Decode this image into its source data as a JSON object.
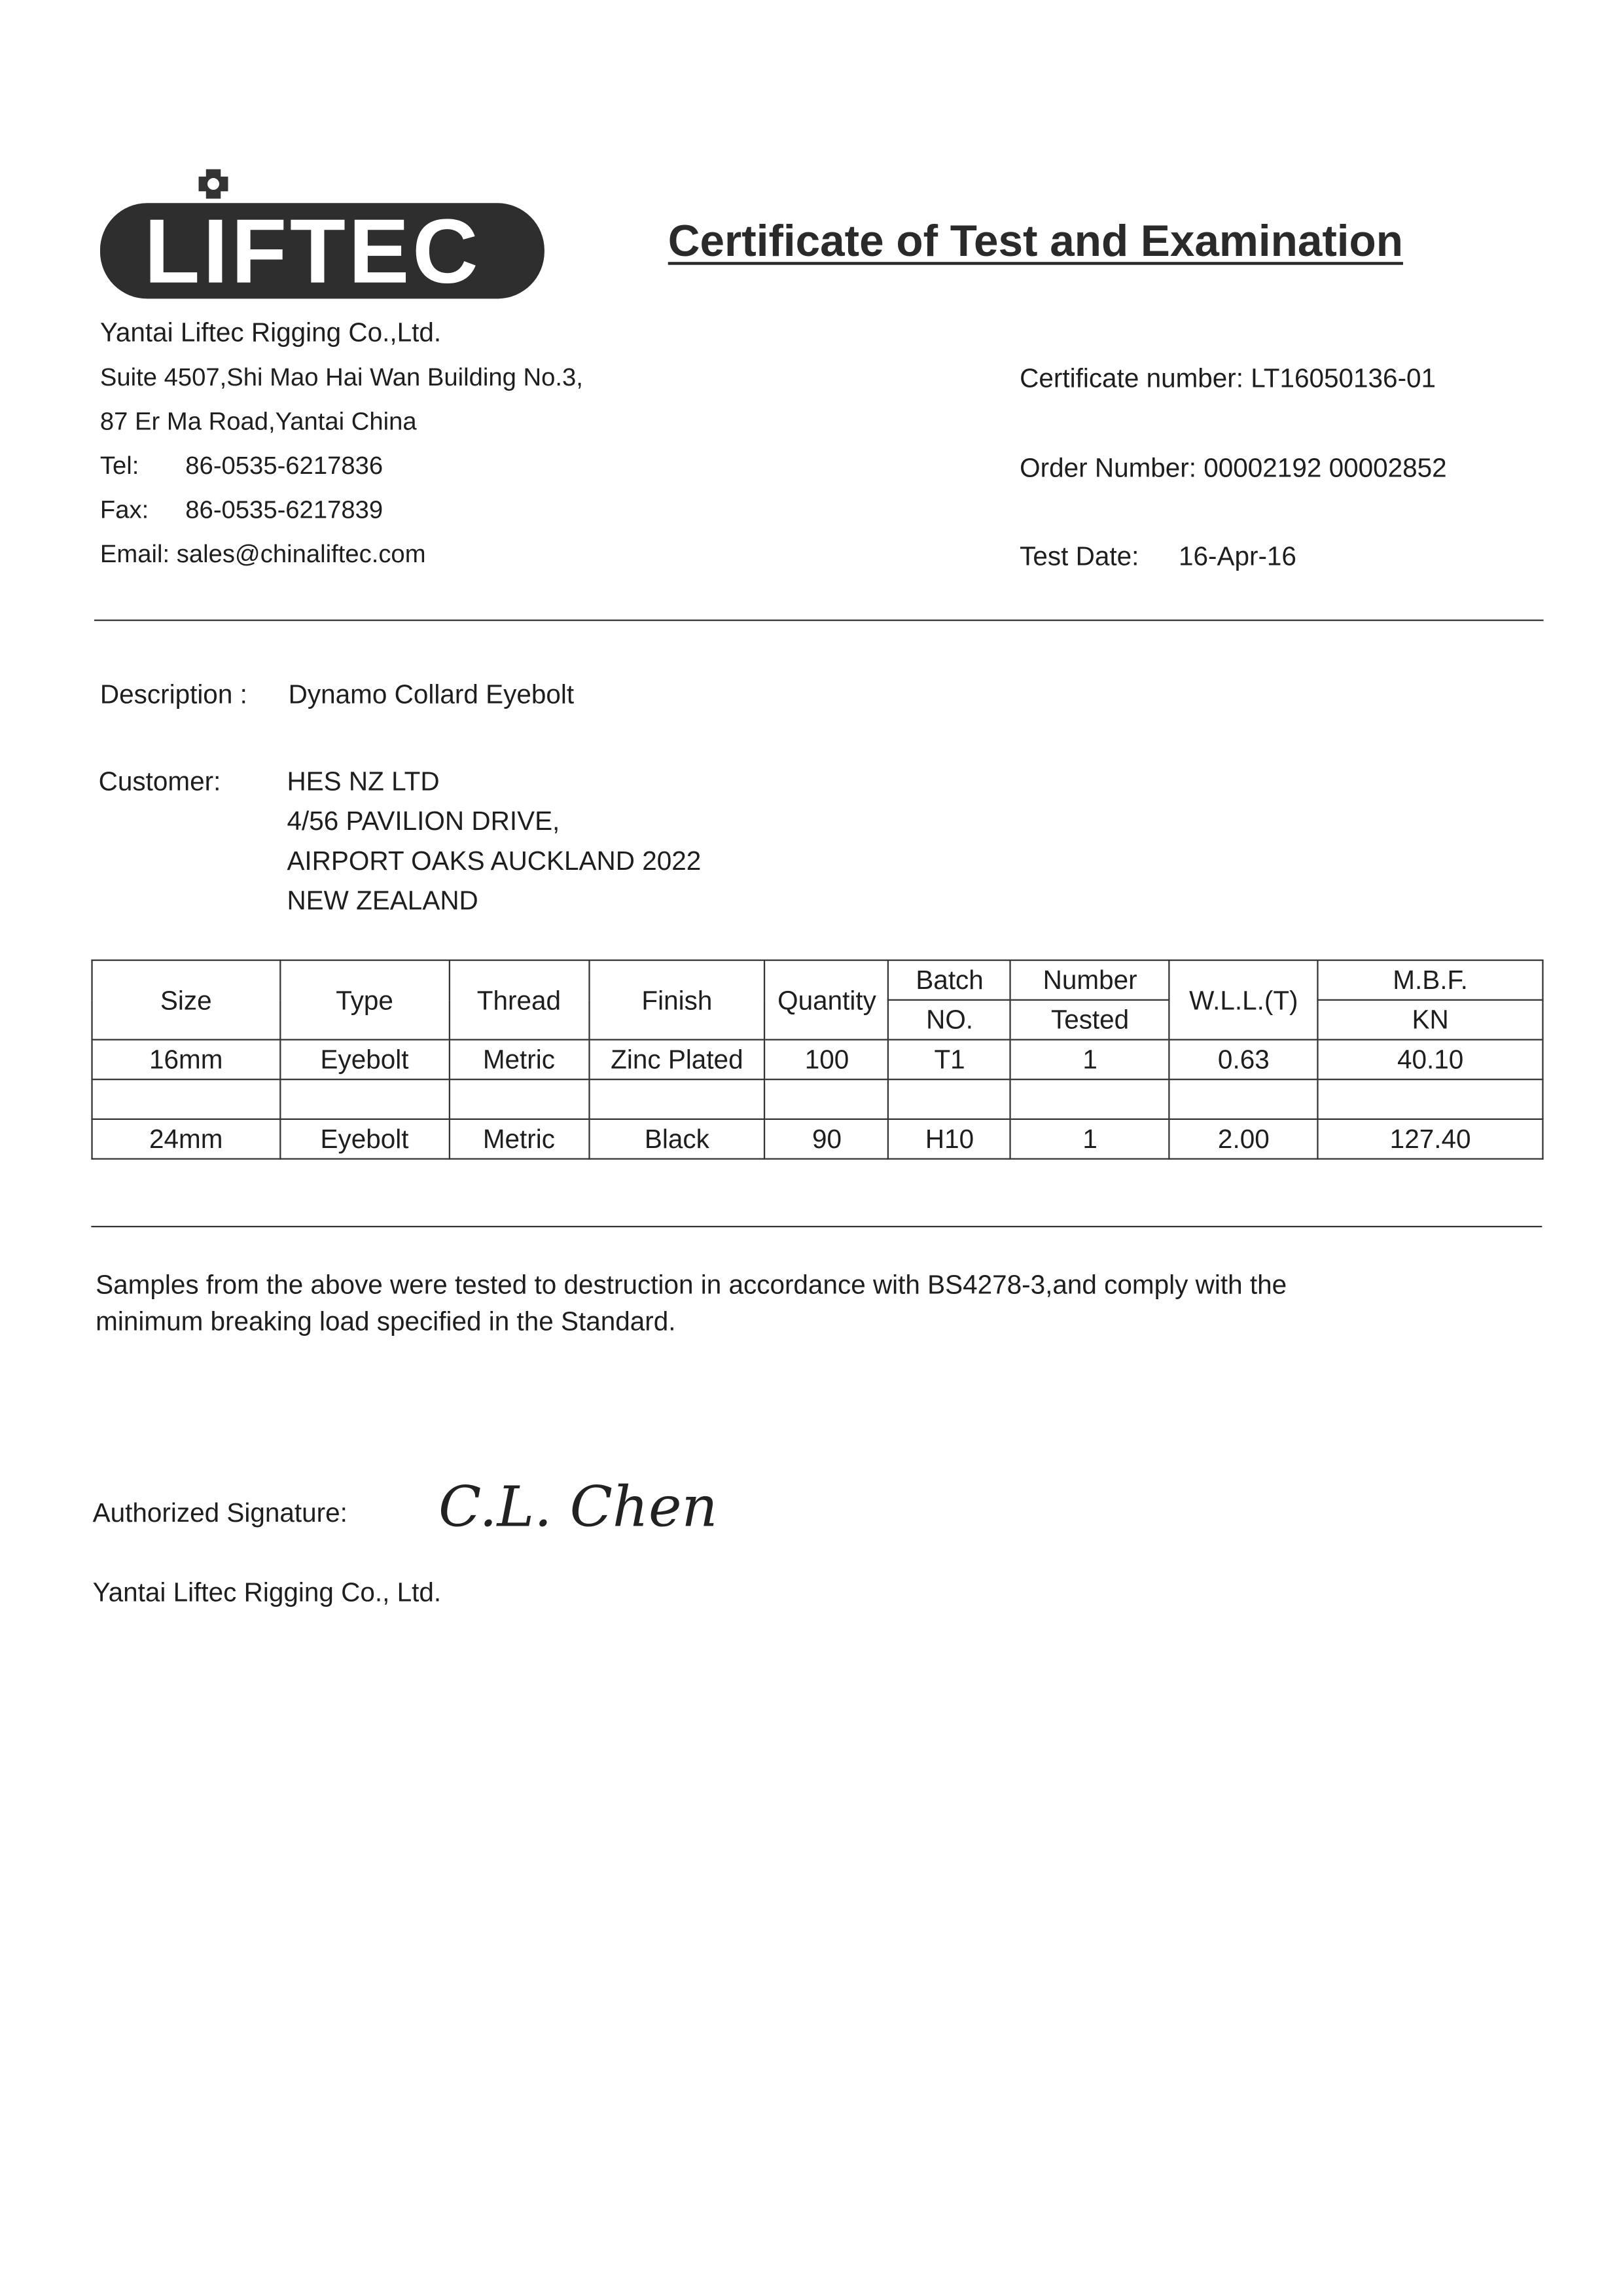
{
  "logo": {
    "text": "LIFTEC"
  },
  "title": "Certificate of Test and Examination",
  "company": {
    "name": "Yantai Liftec Rigging Co.,Ltd.",
    "address1": "Suite 4507,Shi Mao Hai Wan Building No.3,",
    "address2": "87 Er Ma Road,Yantai China",
    "tel_label": "Tel:",
    "tel": "86-0535-6217836",
    "fax_label": "Fax:",
    "fax": "86-0535-6217839",
    "email": "Email: sales@chinaliftec.com"
  },
  "cert": {
    "certificate_number": "Certificate number: LT16050136-01",
    "order_number": "Order Number: 00002192 00002852",
    "test_date_label": "Test Date:",
    "test_date": "16-Apr-16"
  },
  "description": {
    "label": "Description :",
    "value": "Dynamo Collard Eyebolt"
  },
  "customer": {
    "label": "Customer:",
    "lines": [
      "HES NZ LTD",
      "4/56 PAVILION DRIVE,",
      "AIRPORT OAKS AUCKLAND 2022",
      "NEW ZEALAND"
    ]
  },
  "table": {
    "headers": {
      "size": "Size",
      "type": "Type",
      "thread": "Thread",
      "finish": "Finish",
      "quantity": "Quantity",
      "batch_top": "Batch",
      "batch_bottom": "NO.",
      "number_top": "Number",
      "number_bottom": "Tested",
      "wll": "W.L.L.(T)",
      "mbf_top": "M.B.F.",
      "mbf_bottom": "KN"
    },
    "rows": [
      [
        "16mm",
        "Eyebolt",
        "Metric",
        "Zinc Plated",
        "100",
        "T1",
        "1",
        "0.63",
        "40.10"
      ],
      [
        "",
        "",
        "",
        "",
        "",
        "",
        "",
        "",
        ""
      ],
      [
        "24mm",
        "Eyebolt",
        "Metric",
        "Black",
        "90",
        "H10",
        "1",
        "2.00",
        "127.40"
      ]
    ]
  },
  "statement": {
    "line1": "Samples from the above were tested to destruction in accordance with BS4278-3,and comply with the",
    "line2": "minimum breaking load specified in the Standard."
  },
  "signature": {
    "label": "Authorized Signature:",
    "value": "C.L. Chen",
    "company": "Yantai Liftec Rigging Co., Ltd."
  }
}
